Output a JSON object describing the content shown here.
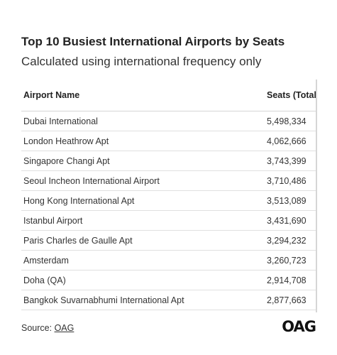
{
  "header": {
    "title": "Top 10 Busiest International Airports by Seats",
    "subtitle": "Calculated using international frequency only"
  },
  "table": {
    "columns": [
      "Airport Name",
      "Seats (Total"
    ],
    "rows": [
      [
        "Dubai International",
        "5,498,334"
      ],
      [
        "London Heathrow Apt",
        "4,062,666"
      ],
      [
        "Singapore Changi Apt",
        "3,743,399"
      ],
      [
        "Seoul Incheon International Airport",
        "3,710,486"
      ],
      [
        "Hong Kong International Apt",
        "3,513,089"
      ],
      [
        "Istanbul Airport",
        "3,431,690"
      ],
      [
        "Paris Charles de Gaulle Apt",
        "3,294,232"
      ],
      [
        "Amsterdam",
        "3,260,723"
      ],
      [
        "Doha (QA)",
        "2,914,708"
      ],
      [
        "Bangkok Suvarnabhumi International Apt",
        "2,877,663"
      ]
    ]
  },
  "footer": {
    "source_label": "Source: ",
    "source_link": "OAG",
    "logo": "OAG"
  }
}
